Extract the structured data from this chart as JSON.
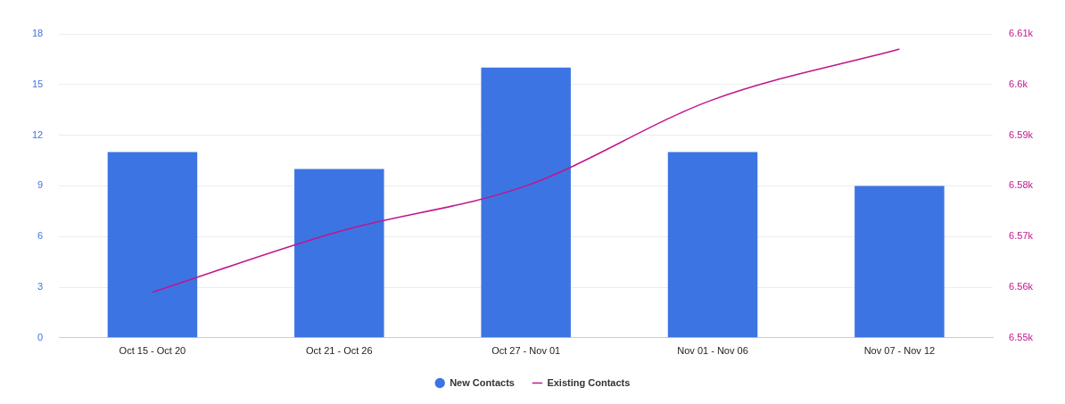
{
  "chart_data": {
    "type": "bar",
    "categories": [
      "Oct 15 - Oct 20",
      "Oct 21 - Oct 26",
      "Oct 27 - Nov 01",
      "Nov 01 - Nov 06",
      "Nov 07 - Nov 12"
    ],
    "series": [
      {
        "name": "New Contacts",
        "color": "#3d74e3",
        "values": [
          11,
          10,
          16,
          11,
          9
        ]
      },
      {
        "name": "Existing Contacts",
        "type": "line",
        "axis": "y2",
        "color": "#c0168c",
        "values": [
          6559,
          6571,
          6580,
          6597,
          6607
        ]
      }
    ],
    "ylim": [
      0,
      18
    ],
    "yticks": [
      0,
      3,
      6,
      9,
      12,
      15,
      18
    ],
    "y2lim": [
      6550,
      6610
    ],
    "y2ticks": [
      {
        "value": 6550,
        "label": "6.55k"
      },
      {
        "value": 6560,
        "label": "6.56k"
      },
      {
        "value": 6570,
        "label": "6.57k"
      },
      {
        "value": 6580,
        "label": "6.58k"
      },
      {
        "value": 6590,
        "label": "6.59k"
      },
      {
        "value": 6600,
        "label": "6.6k"
      },
      {
        "value": 6610,
        "label": "6.61k"
      }
    ],
    "grid": "y",
    "legend": "bottom",
    "marker": "none",
    "line_style": "solid"
  }
}
